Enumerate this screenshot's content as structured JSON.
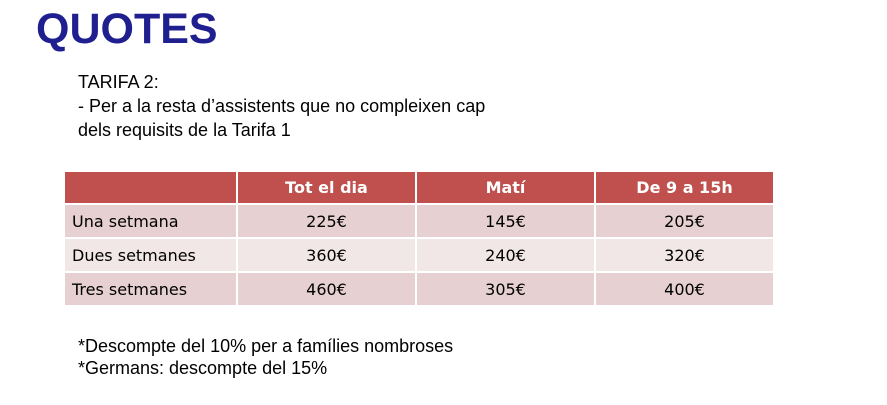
{
  "title": "QUOTES",
  "intro": {
    "line1": "TARIFA 2:",
    "line2": "- Per a la resta d’assistents que no compleixen cap",
    "line3": "dels requisits de la Tarifa 1"
  },
  "table": {
    "headers": [
      "",
      "Tot el dia",
      "Matí",
      "De 9 a 15h"
    ],
    "rows": [
      {
        "label": "Una setmana",
        "values": [
          "225€",
          "145€",
          "205€"
        ]
      },
      {
        "label": "Dues setmanes",
        "values": [
          "360€",
          "240€",
          "320€"
        ]
      },
      {
        "label": "Tres setmanes",
        "values": [
          "460€",
          "305€",
          "400€"
        ]
      }
    ]
  },
  "notes": {
    "line1": "*Descompte del 10% per a famílies nombroses",
    "line2": "*Germans: descompte del 15%"
  },
  "colors": {
    "title": "#1F1F8F",
    "header_bg": "#C0504D",
    "row_odd": "#E6D0D1",
    "row_even": "#F2E7E7"
  }
}
